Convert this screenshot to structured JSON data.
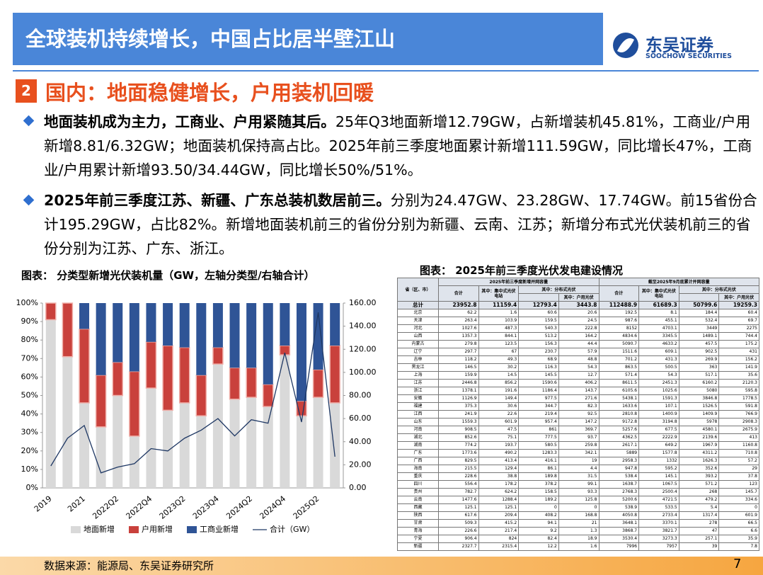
{
  "header": {
    "title": "全球装机持续增长，中国占比居半壁江山",
    "logo_cn": "东吴证券",
    "logo_en": "SOOCHOW SECURITIES"
  },
  "section": {
    "number": "2",
    "title": "国内：地面稳健增长，户用装机回暖"
  },
  "bullets": [
    {
      "bold": "地面装机成为主力，工商业、户用紧随其后。",
      "text": "25年Q3地面新增12.79GW，占新增装机45.81%，工商业/户用新增8.81/6.32GW；地面装机保持高占比。2025年前三季度地面累计新增111.59GW，同比增长47%，工商业/户用累计新增93.50/34.44GW，同比增长50%/51%。"
    },
    {
      "bold": "2025年前三季度江苏、新疆、广东总装机数居前三。",
      "text": "分别为24.47GW、23.28GW、17.74GW。前15省份合计195.29GW，占比82%。新增地面装机前三的省份分别为新疆、云南、江苏；新增分布式光伏装机前三的省份分别为江苏、广东、浙江。"
    }
  ],
  "chart_data": {
    "type": "bar",
    "stacked": true,
    "title": "图表： 分类型新增光伏装机量（GW，左轴分类型/右轴合计）",
    "categories": [
      "2019",
      null,
      "2021",
      null,
      "2022Q2",
      null,
      "2022Q4",
      null,
      "2023Q2",
      null,
      "2023Q4",
      null,
      "2024Q2",
      null,
      "2024Q4",
      null,
      "2025Q2",
      null
    ],
    "series": [
      {
        "name": "地面新增",
        "color": "#d9d9d9",
        "values": [
          91,
          71,
          46,
          33,
          50,
          28,
          54,
          42,
          46,
          39,
          67,
          48,
          49,
          44,
          72,
          39,
          49,
          46
        ]
      },
      {
        "name": "户用新增",
        "color": "#c9413c",
        "values": [
          9,
          29,
          40,
          28,
          18,
          35,
          25,
          35,
          30,
          22,
          9,
          17,
          16,
          12,
          5,
          8,
          15,
          31
        ]
      },
      {
        "name": "工商业新增",
        "color": "#2f5496",
        "values": [
          0,
          0,
          14,
          39,
          32,
          37,
          21,
          23,
          24,
          39,
          24,
          35,
          35,
          44,
          23,
          53,
          36,
          23
        ]
      },
      {
        "name": "合计（GW）",
        "type": "line",
        "axis": "y2",
        "color": "#1f3864",
        "values": [
          19,
          43,
          54,
          13,
          18,
          21,
          34,
          32,
          43,
          50,
          60,
          45,
          59,
          56,
          117,
          57,
          152,
          27
        ]
      }
    ],
    "ylim": [
      0,
      100
    ],
    "yticks": [
      {
        "value": 0,
        "label": "0%"
      },
      {
        "value": 10,
        "label": "10%"
      },
      {
        "value": 20,
        "label": "20%"
      },
      {
        "value": 30,
        "label": "30%"
      },
      {
        "value": 40,
        "label": "40%"
      },
      {
        "value": 50,
        "label": "50%"
      },
      {
        "value": 60,
        "label": "60%"
      },
      {
        "value": 70,
        "label": "70%"
      },
      {
        "value": 80,
        "label": "80%"
      },
      {
        "value": 90,
        "label": "90%"
      },
      {
        "value": 100,
        "label": "100%"
      }
    ],
    "y2lim": [
      0,
      160
    ],
    "y2ticks": [
      {
        "value": 0,
        "label": "0.00"
      },
      {
        "value": 20,
        "label": "20.00"
      },
      {
        "value": 40,
        "label": "40.00"
      },
      {
        "value": 60,
        "label": "60.00"
      },
      {
        "value": 80,
        "label": "80.00"
      },
      {
        "value": 100,
        "label": "100.00"
      },
      {
        "value": 120,
        "label": "120.00"
      },
      {
        "value": 140,
        "label": "140.00"
      },
      {
        "value": 160,
        "label": "160.00"
      }
    ],
    "grid": false,
    "legend": "bottom"
  },
  "table": {
    "title": "图表： 2025年前三季度光伏发电建设情况",
    "corner": "省（区、市）",
    "groups": [
      "2025年前三季度新增并网容量",
      "截至2025年9月底累计并网容量"
    ],
    "headers": [
      "合计",
      "其中：集中式光伏电站",
      "其中：分布式光伏",
      "其中：户用光伏"
    ],
    "rows": [
      [
        "总计",
        "23952.8",
        "11159.4",
        "12793.4",
        "3443.8",
        "112488.9",
        "61689.3",
        "50799.6",
        "19259.3"
      ],
      [
        "北京",
        "62.2",
        "1.6",
        "60.6",
        "20.6",
        "192.5",
        "8.1",
        "184.4",
        "60.4"
      ],
      [
        "天津",
        "263.4",
        "103.9",
        "159.5",
        "24.5",
        "987.6",
        "455.1",
        "532.4",
        "69.7"
      ],
      [
        "河北",
        "1027.6",
        "487.3",
        "540.3",
        "222.8",
        "8152",
        "4703.1",
        "3449",
        "2275"
      ],
      [
        "山西",
        "1357.3",
        "844.1",
        "513.2",
        "164.2",
        "4834.6",
        "3345.5",
        "1489.1",
        "744.4"
      ],
      [
        "内蒙古",
        "279.8",
        "123.5",
        "156.3",
        "44.4",
        "5090.7",
        "4633.2",
        "457.5",
        "175.2"
      ],
      [
        "辽宁",
        "297.7",
        "67",
        "230.7",
        "57.9",
        "1511.6",
        "609.1",
        "902.5",
        "431"
      ],
      [
        "吉林",
        "118.2",
        "49.3",
        "68.9",
        "48.8",
        "701.2",
        "431.3",
        "269.9",
        "156.2"
      ],
      [
        "黑龙江",
        "146.5",
        "30.2",
        "116.3",
        "54.3",
        "863.5",
        "500.5",
        "363",
        "141.9"
      ],
      [
        "上海",
        "159.9",
        "14.5",
        "145.5",
        "12.7",
        "571.4",
        "54.3",
        "517.1",
        "35.6"
      ],
      [
        "江苏",
        "2446.8",
        "856.2",
        "1590.6",
        "406.2",
        "8611.5",
        "2451.3",
        "6160.2",
        "2120.3"
      ],
      [
        "浙江",
        "1378.1",
        "191.6",
        "1186.4",
        "143.7",
        "6105.6",
        "1025.6",
        "5080",
        "595.8"
      ],
      [
        "安徽",
        "1126.9",
        "149.4",
        "977.5",
        "271.6",
        "5438.1",
        "1591.3",
        "3846.8",
        "1778.5"
      ],
      [
        "福建",
        "375.3",
        "30.6",
        "344.7",
        "82.3",
        "1633.6",
        "107.1",
        "1526.5",
        "591.8"
      ],
      [
        "江西",
        "241.9",
        "22.6",
        "219.4",
        "92.5",
        "2810.8",
        "1400.9",
        "1409.9",
        "766.9"
      ],
      [
        "山东",
        "1559.3",
        "601.9",
        "957.4",
        "147.2",
        "9172.8",
        "3194.8",
        "5978",
        "2908.3"
      ],
      [
        "河南",
        "908.5",
        "47.5",
        "861",
        "369.7",
        "5257.6",
        "677.5",
        "4580.1",
        "2675.9"
      ],
      [
        "湖北",
        "852.6",
        "75.1",
        "777.5",
        "93.7",
        "4362.5",
        "2222.9",
        "2139.6",
        "413"
      ],
      [
        "湖南",
        "774.2",
        "193.7",
        "580.5",
        "259.8",
        "2617.1",
        "649.2",
        "1967.9",
        "1160.8"
      ],
      [
        "广东",
        "1773.6",
        "490.2",
        "1283.3",
        "342.1",
        "5889",
        "1577.8",
        "4311.2",
        "710.8"
      ],
      [
        "广西",
        "829.5",
        "413.4",
        "416.1",
        "19",
        "2958.3",
        "1332",
        "1626.3",
        "57.2"
      ],
      [
        "海南",
        "215.5",
        "129.4",
        "86.1",
        "4.4",
        "947.8",
        "595.2",
        "352.6",
        "29"
      ],
      [
        "重庆",
        "228.6",
        "38.8",
        "189.8",
        "31.5",
        "538.4",
        "145.1",
        "393.2",
        "37.8"
      ],
      [
        "四川",
        "556.4",
        "178.2",
        "378.2",
        "99.1",
        "1638.7",
        "1067.5",
        "571.2",
        "123"
      ],
      [
        "贵州",
        "782.7",
        "624.2",
        "158.5",
        "93.3",
        "2768.3",
        "2500.4",
        "268",
        "145.7"
      ],
      [
        "云南",
        "1477.6",
        "1288.4",
        "189.2",
        "125.8",
        "5200.6",
        "4721.5",
        "479.2",
        "334.6"
      ],
      [
        "西藏",
        "125.1",
        "125.1",
        "0",
        "0",
        "538.9",
        "533.5",
        "5.4",
        "0"
      ],
      [
        "陕西",
        "617.6",
        "209.4",
        "408.2",
        "168.8",
        "4050.8",
        "2733.4",
        "1317.4",
        "601.9"
      ],
      [
        "甘肃",
        "509.3",
        "415.2",
        "94.1",
        "21",
        "3648.1",
        "3370.1",
        "278",
        "66.5"
      ],
      [
        "青海",
        "226.6",
        "217.4",
        "9.2",
        "1.3",
        "3868.7",
        "3821.7",
        "47",
        "6.6"
      ],
      [
        "宁夏",
        "906.4",
        "824",
        "82.4",
        "18.9",
        "3530.4",
        "3273.3",
        "257.1",
        "35.9"
      ],
      [
        "新疆",
        "2327.7",
        "2315.4",
        "12.2",
        "1.6",
        "7996",
        "7957",
        "39",
        "7.8"
      ]
    ]
  },
  "footer": {
    "source": "数据来源：能源局、东吴证券研究所",
    "page": "7"
  }
}
